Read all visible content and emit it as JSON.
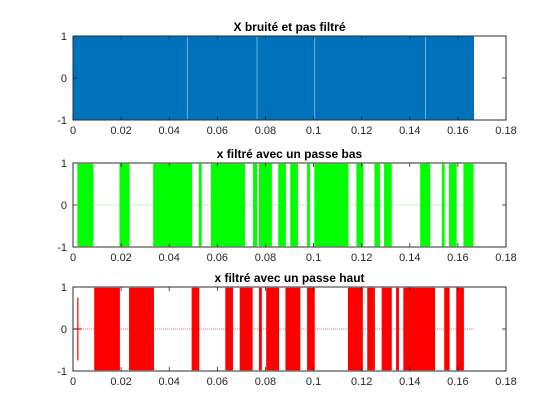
{
  "chart_data": [
    {
      "type": "line",
      "title": "X bruité et pas filtré",
      "xlabel": "",
      "ylabel": "",
      "xlim": [
        0,
        0.18
      ],
      "ylim": [
        -1,
        1
      ],
      "xticks": [
        0,
        0.02,
        0.04,
        0.06,
        0.08,
        0.1,
        0.12,
        0.14,
        0.16,
        0.18
      ],
      "xtick_labels": [
        "0",
        "0.02",
        "0.04",
        "0.06",
        "0.08",
        "0.1",
        "0.12",
        "0.14",
        "0.16",
        "0.18"
      ],
      "yticks": [
        -1,
        0,
        1
      ],
      "ytick_labels": [
        "-1",
        "0",
        "1"
      ],
      "grid": false,
      "color": "#0072BD",
      "signal": {
        "description_free": true,
        "x_range": [
          0,
          0.1667
        ],
        "amplitude_range": [
          -1,
          1
        ],
        "segments": [
          {
            "x": [
              0.0,
              0.1667
            ],
            "amplitude": 1.0
          }
        ]
      }
    },
    {
      "type": "line",
      "title": "x filtré avec un passe bas",
      "xlabel": "",
      "ylabel": "",
      "xlim": [
        0,
        0.18
      ],
      "ylim": [
        -1,
        1
      ],
      "xticks": [
        0,
        0.02,
        0.04,
        0.06,
        0.08,
        0.1,
        0.12,
        0.14,
        0.16,
        0.18
      ],
      "xtick_labels": [
        "0",
        "0.02",
        "0.04",
        "0.06",
        "0.08",
        "0.1",
        "0.12",
        "0.14",
        "0.16",
        "0.18"
      ],
      "yticks": [
        -1,
        0,
        1
      ],
      "ytick_labels": [
        "-1",
        "0",
        "1"
      ],
      "grid": false,
      "color": "#00FF00",
      "signal": {
        "x_range": [
          0,
          0.1667
        ],
        "amplitude_range": [
          -1,
          1
        ],
        "segments": [
          {
            "x": [
              0.002,
              0.0085
            ],
            "amplitude": 0.98
          },
          {
            "x": [
              0.0195,
              0.0235
            ],
            "amplitude": 0.98
          },
          {
            "x": [
              0.0335,
              0.0495
            ],
            "amplitude": 0.98
          },
          {
            "x": [
              0.0525,
              0.0535
            ],
            "amplitude": 0.98
          },
          {
            "x": [
              0.0575,
              0.0715
            ],
            "amplitude": 0.98
          },
          {
            "x": [
              0.075,
              0.0765
            ],
            "amplitude": 0.98
          },
          {
            "x": [
              0.0775,
              0.0825
            ],
            "amplitude": 0.98
          },
          {
            "x": [
              0.0855,
              0.0885
            ],
            "amplitude": 0.98
          },
          {
            "x": [
              0.0905,
              0.0935
            ],
            "amplitude": 0.98
          },
          {
            "x": [
              0.0975,
              0.0985
            ],
            "amplitude": 0.98
          },
          {
            "x": [
              0.1005,
              0.1145
            ],
            "amplitude": 0.98
          },
          {
            "x": [
              0.118,
              0.1205
            ],
            "amplitude": 0.98
          },
          {
            "x": [
              0.1255,
              0.1275
            ],
            "amplitude": 0.98
          },
          {
            "x": [
              0.1295,
              0.1325
            ],
            "amplitude": 0.98
          },
          {
            "x": [
              0.1445,
              0.1485
            ],
            "amplitude": 0.98
          },
          {
            "x": [
              0.1535,
              0.1545
            ],
            "amplitude": 0.98
          },
          {
            "x": [
              0.1565,
              0.1595
            ],
            "amplitude": 0.98
          },
          {
            "x": [
              0.1625,
              0.1665
            ],
            "amplitude": 0.98
          }
        ]
      }
    },
    {
      "type": "line",
      "title": "x filtré avec un passe haut",
      "xlabel": "",
      "ylabel": "",
      "xlim": [
        0,
        0.18
      ],
      "ylim": [
        -1,
        1
      ],
      "xticks": [
        0,
        0.02,
        0.04,
        0.06,
        0.08,
        0.1,
        0.12,
        0.14,
        0.16,
        0.18
      ],
      "xtick_labels": [
        "0",
        "0.02",
        "0.04",
        "0.06",
        "0.08",
        "0.1",
        "0.12",
        "0.14",
        "0.16",
        "0.18"
      ],
      "yticks": [
        -1,
        0,
        1
      ],
      "ytick_labels": [
        "-1",
        "0",
        "1"
      ],
      "grid": false,
      "color": "#FF0000",
      "signal": {
        "x_range": [
          0,
          0.1667
        ],
        "amplitude_range": [
          -1,
          1
        ],
        "spike": {
          "x": 0.002,
          "amplitude": 0.75
        },
        "segments": [
          {
            "x": [
              0.009,
              0.0195
            ],
            "amplitude": 0.98
          },
          {
            "x": [
              0.0235,
              0.0335
            ],
            "amplitude": 0.98
          },
          {
            "x": [
              0.0495,
              0.0525
            ],
            "amplitude": 0.98
          },
          {
            "x": [
              0.0635,
              0.0665
            ],
            "amplitude": 0.98
          },
          {
            "x": [
              0.0695,
              0.0745
            ],
            "amplitude": 0.98
          },
          {
            "x": [
              0.0775,
              0.0785
            ],
            "amplitude": 0.98
          },
          {
            "x": [
              0.0805,
              0.0855
            ],
            "amplitude": 0.98
          },
          {
            "x": [
              0.0885,
              0.0945
            ],
            "amplitude": 0.98
          },
          {
            "x": [
              0.0975,
              0.1005
            ],
            "amplitude": 0.98
          },
          {
            "x": [
              0.1145,
              0.1205
            ],
            "amplitude": 0.98
          },
          {
            "x": [
              0.1225,
              0.1255
            ],
            "amplitude": 0.98
          },
          {
            "x": [
              0.1285,
              0.1325
            ],
            "amplitude": 0.98
          },
          {
            "x": [
              0.1345,
              0.1355
            ],
            "amplitude": 0.98
          },
          {
            "x": [
              0.1375,
              0.1505
            ],
            "amplitude": 0.98
          },
          {
            "x": [
              0.1545,
              0.1565
            ],
            "amplitude": 0.98
          },
          {
            "x": [
              0.1595,
              0.1625
            ],
            "amplitude": 0.98
          }
        ]
      }
    }
  ]
}
